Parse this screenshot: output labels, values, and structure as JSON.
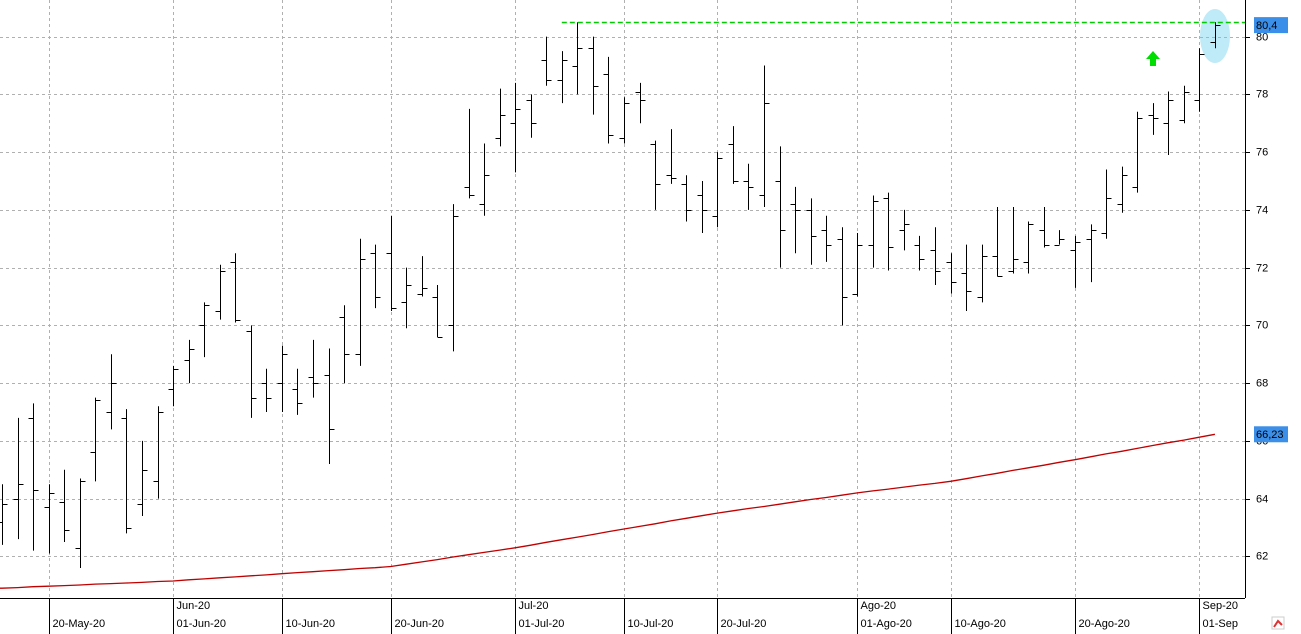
{
  "chart_data": {
    "type": "ohlc",
    "color": "#000000",
    "grid": true,
    "categories": [
      null,
      null,
      null,
      "20-May-20",
      null,
      null,
      null,
      null,
      null,
      null,
      null,
      "01-Jun-20",
      null,
      null,
      null,
      null,
      null,
      null,
      "10-Jun-20",
      null,
      null,
      null,
      null,
      null,
      null,
      "20-Jun-20",
      null,
      null,
      null,
      null,
      null,
      null,
      null,
      "01-Jul-20",
      null,
      null,
      null,
      null,
      null,
      null,
      "10-Jul-20",
      null,
      null,
      null,
      null,
      null,
      "20-Jul-20",
      null,
      null,
      null,
      null,
      null,
      null,
      null,
      null,
      "01-Ago-20",
      null,
      null,
      null,
      null,
      null,
      "10-Ago-20",
      null,
      null,
      null,
      null,
      null,
      null,
      null,
      "20-Ago-20",
      null,
      null,
      null,
      null,
      null,
      null,
      null,
      "01-Sep",
      null
    ],
    "months": [
      null,
      null,
      null,
      null,
      null,
      null,
      null,
      null,
      null,
      null,
      null,
      "Jun-20",
      null,
      null,
      null,
      null,
      null,
      null,
      null,
      null,
      null,
      null,
      null,
      null,
      null,
      null,
      null,
      null,
      null,
      null,
      null,
      null,
      null,
      "Jul-20",
      null,
      null,
      null,
      null,
      null,
      null,
      null,
      null,
      null,
      null,
      null,
      null,
      null,
      null,
      null,
      null,
      null,
      null,
      null,
      null,
      null,
      "Ago-20",
      null,
      null,
      null,
      null,
      null,
      null,
      null,
      null,
      null,
      null,
      null,
      null,
      null,
      null,
      null,
      null,
      null,
      null,
      null,
      null,
      null,
      "Sep-20",
      null
    ],
    "open": [
      63.2,
      64.0,
      66.8,
      63.7,
      63.9,
      62.3,
      65.6,
      67.0,
      66.8,
      63.8,
      64.6,
      67.8,
      68.8,
      70.0,
      70.5,
      72.2,
      69.8,
      68.0,
      68.0,
      67.8,
      68.2,
      68.3,
      70.3,
      69.0,
      72.5,
      72.5,
      70.8,
      71.1,
      71.0,
      70.0,
      74.8,
      74.2,
      76.5,
      77.0,
      77.8,
      79.2,
      78.5,
      79.0,
      79.6,
      78.7,
      76.5,
      78.1,
      76.3,
      75.2,
      74.9,
      74.5,
      73.8,
      76.3,
      75.0,
      74.5,
      75.0,
      74.2,
      74.0,
      73.3,
      73.0,
      71.1,
      72.8,
      74.4,
      73.3,
      72.8,
      72.6,
      72.2,
      71.8,
      71.0,
      72.4,
      71.9,
      72.2,
      73.3,
      72.8,
      72.6,
      73.0,
      73.2,
      74.2,
      74.8,
      77.3,
      77.0,
      77.1,
      77.8,
      79.8
    ],
    "high": [
      64.5,
      66.8,
      67.3,
      64.5,
      65.0,
      64.7,
      67.5,
      69.0,
      67.1,
      66.0,
      67.2,
      68.6,
      69.5,
      70.8,
      72.1,
      72.5,
      70.0,
      68.5,
      69.3,
      68.5,
      69.5,
      69.2,
      70.7,
      73.0,
      72.8,
      73.8,
      72.0,
      72.4,
      71.4,
      74.2,
      77.5,
      76.3,
      78.2,
      78.4,
      78.0,
      80.0,
      79.5,
      80.5,
      80.0,
      79.3,
      77.9,
      78.4,
      76.4,
      76.8,
      75.2,
      75.0,
      76.0,
      76.9,
      75.6,
      79.0,
      76.2,
      74.8,
      74.4,
      73.8,
      73.4,
      73.2,
      74.5,
      74.6,
      74.0,
      73.1,
      73.4,
      72.5,
      72.8,
      72.8,
      74.1,
      74.1,
      73.6,
      74.1,
      73.3,
      73.1,
      73.5,
      75.4,
      75.5,
      77.4,
      77.7,
      78.1,
      78.3,
      79.6,
      80.5
    ],
    "low": [
      62.4,
      62.6,
      62.2,
      62.1,
      62.5,
      61.6,
      64.6,
      66.4,
      62.8,
      63.4,
      64.0,
      67.2,
      68.0,
      68.9,
      70.2,
      70.1,
      66.8,
      67.0,
      67.0,
      66.9,
      67.5,
      65.2,
      68.0,
      68.6,
      70.6,
      70.5,
      69.9,
      71.0,
      69.6,
      69.1,
      74.4,
      73.8,
      76.2,
      75.3,
      76.5,
      78.3,
      77.7,
      78.0,
      77.3,
      76.3,
      76.3,
      77.0,
      74.0,
      74.9,
      73.6,
      73.2,
      73.4,
      74.9,
      74.0,
      74.1,
      72.0,
      72.5,
      72.1,
      72.2,
      70.0,
      71.0,
      72.0,
      71.9,
      72.6,
      71.9,
      71.4,
      71.1,
      70.5,
      70.8,
      71.7,
      71.8,
      71.8,
      72.7,
      72.8,
      71.3,
      71.5,
      73.0,
      73.9,
      74.6,
      76.6,
      75.9,
      77.0,
      77.4,
      79.6
    ],
    "close": [
      63.8,
      64.5,
      64.3,
      64.2,
      62.9,
      64.6,
      67.4,
      68.0,
      63.0,
      65.0,
      67.0,
      68.5,
      69.2,
      70.7,
      71.9,
      70.2,
      67.5,
      67.5,
      69.0,
      67.3,
      68.0,
      66.4,
      69.0,
      72.3,
      71.0,
      70.6,
      71.4,
      71.3,
      69.6,
      73.8,
      74.5,
      75.2,
      77.3,
      77.5,
      77.0,
      78.5,
      79.2,
      79.6,
      78.3,
      76.6,
      77.7,
      77.8,
      74.9,
      75.1,
      74.0,
      74.0,
      75.8,
      75.0,
      74.8,
      77.7,
      73.3,
      74.0,
      73.1,
      72.8,
      71.0,
      72.8,
      74.3,
      72.7,
      73.5,
      72.3,
      71.9,
      71.5,
      71.2,
      72.4,
      71.7,
      72.3,
      73.5,
      72.8,
      73.0,
      72.9,
      73.3,
      74.4,
      75.2,
      77.2,
      77.2,
      77.8,
      78.1,
      79.4,
      80.4
    ],
    "close_label": {
      "value": 80.4,
      "label": "80,4"
    },
    "moving_average": {
      "color": "#c00000",
      "values": [
        60.9,
        60.92,
        60.95,
        60.97,
        60.99,
        61.01,
        61.04,
        61.06,
        61.08,
        61.1,
        61.13,
        61.15,
        61.19,
        61.22,
        61.26,
        61.29,
        61.33,
        61.36,
        61.4,
        61.44,
        61.47,
        61.51,
        61.54,
        61.58,
        61.61,
        61.65,
        61.73,
        61.81,
        61.89,
        61.98,
        62.06,
        62.14,
        62.22,
        62.3,
        62.39,
        62.49,
        62.58,
        62.67,
        62.76,
        62.86,
        62.95,
        63.04,
        63.13,
        63.23,
        63.32,
        63.41,
        63.5,
        63.58,
        63.66,
        63.73,
        63.81,
        63.89,
        63.97,
        64.04,
        64.12,
        64.2,
        64.27,
        64.33,
        64.4,
        64.47,
        64.53,
        64.6,
        64.69,
        64.79,
        64.88,
        64.98,
        65.07,
        65.16,
        65.26,
        65.35,
        65.45,
        65.55,
        65.64,
        65.74,
        65.84,
        65.94,
        66.03,
        66.13,
        66.23
      ],
      "last_label": {
        "value": 66.23,
        "label": "66,23"
      }
    },
    "resistance": {
      "value": 80.5,
      "from": 36,
      "color": "#00cc00"
    },
    "label_color": "#3c8fe8",
    "ylim": [
      60.56,
      81.27
    ],
    "yticks": [
      62,
      64,
      66,
      68,
      70,
      72,
      74,
      76,
      78,
      80
    ]
  }
}
